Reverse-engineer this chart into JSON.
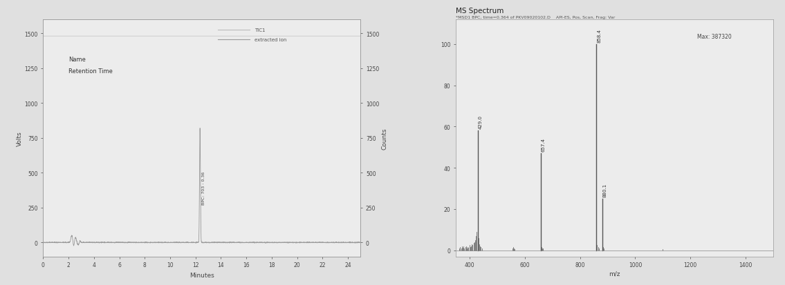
{
  "background_color": "#e0e0e0",
  "plot_bg_color": "#ececec",
  "left_chart": {
    "xlabel": "Minutes",
    "ylabel_left": "Volts",
    "ylabel_right": "Counts",
    "xlim": [
      0,
      25
    ],
    "ylim_left": [
      -100,
      1600
    ],
    "ylim_right": [
      -100,
      1600
    ],
    "yticks_left": [
      0,
      250,
      500,
      750,
      1000,
      1250,
      1500
    ],
    "yticks_right": [
      0,
      250,
      500,
      750,
      1000,
      1250,
      1500
    ],
    "xticks": [
      0,
      2,
      4,
      6,
      8,
      10,
      12,
      14,
      16,
      18,
      20,
      22,
      24
    ],
    "legend_line1_label": "TIC1",
    "legend_line2_label": "extracted ion",
    "legend_name": "Name",
    "legend_rt": "Retention Time",
    "peak_main_x": 12.35,
    "peak_main_y": 820,
    "peak_main_label": "BPC: 703 - 0.36",
    "line_color": "#999999",
    "line_color2": "#bbbbbb",
    "tic_flat_y": 1480
  },
  "right_chart": {
    "title": "MS Spectrum",
    "subtitle": "*MSD1 BPC, time=0.364 of PKV09020102.D    API-ES, Pos, Scan, Frag: Var",
    "xlabel": "m/z",
    "xlim": [
      350,
      1500
    ],
    "ylim": [
      -3,
      112
    ],
    "yticks": [
      0,
      20,
      40,
      60,
      80,
      100
    ],
    "xticks": [
      400,
      600,
      800,
      1000,
      1200,
      1400
    ],
    "max_label": "Max: 387320",
    "main_peaks": [
      {
        "mz": 429.0,
        "intensity": 58,
        "label": "429.0"
      },
      {
        "mz": 858.4,
        "intensity": 100,
        "label": "858.4"
      },
      {
        "mz": 657.4,
        "intensity": 47,
        "label": "657.4"
      },
      {
        "mz": 880.1,
        "intensity": 25,
        "label": "880.1"
      }
    ],
    "noise_peaks": [
      {
        "mz": 363,
        "intensity": 1.0
      },
      {
        "mz": 366,
        "intensity": 1.5
      },
      {
        "mz": 369,
        "intensity": 1.0
      },
      {
        "mz": 372,
        "intensity": 2.0
      },
      {
        "mz": 375,
        "intensity": 1.2
      },
      {
        "mz": 378,
        "intensity": 1.8
      },
      {
        "mz": 381,
        "intensity": 1.0
      },
      {
        "mz": 384,
        "intensity": 1.5
      },
      {
        "mz": 387,
        "intensity": 2.0
      },
      {
        "mz": 390,
        "intensity": 1.0
      },
      {
        "mz": 393,
        "intensity": 1.5
      },
      {
        "mz": 396,
        "intensity": 1.2
      },
      {
        "mz": 399,
        "intensity": 2.5
      },
      {
        "mz": 402,
        "intensity": 1.5
      },
      {
        "mz": 405,
        "intensity": 2.0
      },
      {
        "mz": 408,
        "intensity": 3.0
      },
      {
        "mz": 411,
        "intensity": 2.5
      },
      {
        "mz": 414,
        "intensity": 3.5
      },
      {
        "mz": 417,
        "intensity": 4.0
      },
      {
        "mz": 420,
        "intensity": 5.0
      },
      {
        "mz": 423,
        "intensity": 7.0
      },
      {
        "mz": 426,
        "intensity": 9.0
      },
      {
        "mz": 432,
        "intensity": 6.0
      },
      {
        "mz": 435,
        "intensity": 3.0
      },
      {
        "mz": 438,
        "intensity": 2.0
      },
      {
        "mz": 441,
        "intensity": 1.5
      },
      {
        "mz": 444,
        "intensity": 1.0
      },
      {
        "mz": 555,
        "intensity": 0.8
      },
      {
        "mz": 558,
        "intensity": 1.5
      },
      {
        "mz": 561,
        "intensity": 0.8
      },
      {
        "mz": 564,
        "intensity": 0.5
      },
      {
        "mz": 660,
        "intensity": 1.5
      },
      {
        "mz": 663,
        "intensity": 1.0
      },
      {
        "mz": 666,
        "intensity": 0.8
      },
      {
        "mz": 862,
        "intensity": 2.5
      },
      {
        "mz": 865,
        "intensity": 1.5
      },
      {
        "mz": 868,
        "intensity": 1.0
      },
      {
        "mz": 883,
        "intensity": 1.5
      },
      {
        "mz": 886,
        "intensity": 1.0
      },
      {
        "mz": 1100,
        "intensity": 0.5
      }
    ],
    "line_color": "#555555"
  }
}
